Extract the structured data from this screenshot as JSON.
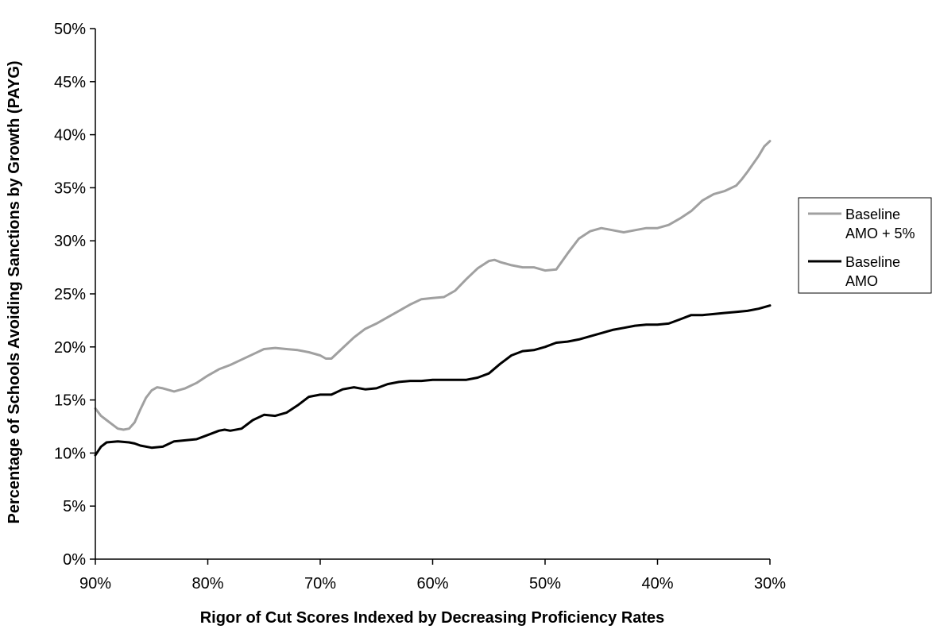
{
  "chart_data": {
    "type": "line",
    "title": "",
    "xlabel": "Rigor of Cut Scores Indexed by Decreasing Proficiency Rates",
    "ylabel": "Percentage of Schools Avoiding Sanctions by Growth (PAYG)",
    "x_reversed": true,
    "xlim": [
      90,
      30
    ],
    "ylim": [
      0,
      50
    ],
    "x_ticks": [
      90,
      80,
      70,
      60,
      50,
      40,
      30
    ],
    "x_tick_labels": [
      "90%",
      "80%",
      "70%",
      "60%",
      "50%",
      "40%",
      "30%"
    ],
    "y_ticks": [
      0,
      5,
      10,
      15,
      20,
      25,
      30,
      35,
      40,
      45,
      50
    ],
    "y_tick_labels": [
      "0%",
      "5%",
      "10%",
      "15%",
      "20%",
      "25%",
      "30%",
      "35%",
      "40%",
      "45%",
      "50%"
    ],
    "grid": false,
    "legend_position": "right",
    "series": [
      {
        "name_lines": [
          "Baseline",
          "AMO + 5%"
        ],
        "color": "#a0a0a0",
        "points": [
          [
            90,
            14.2
          ],
          [
            89.5,
            13.5
          ],
          [
            89,
            13.1
          ],
          [
            88.5,
            12.7
          ],
          [
            88,
            12.3
          ],
          [
            87.5,
            12.2
          ],
          [
            87,
            12.3
          ],
          [
            86.5,
            12.9
          ],
          [
            86,
            14.1
          ],
          [
            85.5,
            15.2
          ],
          [
            85,
            15.9
          ],
          [
            84.5,
            16.2
          ],
          [
            84,
            16.1
          ],
          [
            83,
            15.8
          ],
          [
            82,
            16.1
          ],
          [
            81,
            16.6
          ],
          [
            80,
            17.3
          ],
          [
            79,
            17.9
          ],
          [
            78,
            18.3
          ],
          [
            77,
            18.8
          ],
          [
            76,
            19.3
          ],
          [
            75,
            19.8
          ],
          [
            74,
            19.9
          ],
          [
            73,
            19.8
          ],
          [
            72,
            19.7
          ],
          [
            71,
            19.5
          ],
          [
            70,
            19.2
          ],
          [
            69.5,
            18.9
          ],
          [
            69,
            18.9
          ],
          [
            68,
            19.9
          ],
          [
            67,
            20.9
          ],
          [
            66,
            21.7
          ],
          [
            65,
            22.2
          ],
          [
            64,
            22.8
          ],
          [
            63,
            23.4
          ],
          [
            62,
            24.0
          ],
          [
            61,
            24.5
          ],
          [
            60,
            24.6
          ],
          [
            59,
            24.7
          ],
          [
            58,
            25.3
          ],
          [
            57,
            26.4
          ],
          [
            56,
            27.4
          ],
          [
            55,
            28.1
          ],
          [
            54.5,
            28.2
          ],
          [
            54,
            28.0
          ],
          [
            53,
            27.7
          ],
          [
            52,
            27.5
          ],
          [
            51,
            27.5
          ],
          [
            50,
            27.2
          ],
          [
            49,
            27.3
          ],
          [
            48,
            28.8
          ],
          [
            47,
            30.2
          ],
          [
            46,
            30.9
          ],
          [
            45,
            31.2
          ],
          [
            44,
            31.0
          ],
          [
            43,
            30.8
          ],
          [
            42,
            31.0
          ],
          [
            41,
            31.2
          ],
          [
            40,
            31.2
          ],
          [
            39,
            31.5
          ],
          [
            38,
            32.1
          ],
          [
            37,
            32.8
          ],
          [
            36,
            33.8
          ],
          [
            35,
            34.4
          ],
          [
            34,
            34.7
          ],
          [
            33,
            35.2
          ],
          [
            32.5,
            35.8
          ],
          [
            32,
            36.5
          ],
          [
            31,
            38.0
          ],
          [
            30.5,
            38.9
          ],
          [
            30,
            39.4
          ]
        ]
      },
      {
        "name_lines": [
          "Baseline",
          "AMO"
        ],
        "color": "#000000",
        "points": [
          [
            90,
            9.8
          ],
          [
            89.5,
            10.6
          ],
          [
            89,
            11.0
          ],
          [
            88,
            11.1
          ],
          [
            87,
            11.0
          ],
          [
            86.5,
            10.9
          ],
          [
            86,
            10.7
          ],
          [
            85,
            10.5
          ],
          [
            84,
            10.6
          ],
          [
            83,
            11.1
          ],
          [
            82,
            11.2
          ],
          [
            81,
            11.3
          ],
          [
            80,
            11.7
          ],
          [
            79,
            12.1
          ],
          [
            78.5,
            12.2
          ],
          [
            78,
            12.1
          ],
          [
            77,
            12.3
          ],
          [
            76,
            13.1
          ],
          [
            75,
            13.6
          ],
          [
            74,
            13.5
          ],
          [
            73,
            13.8
          ],
          [
            72,
            14.5
          ],
          [
            71,
            15.3
          ],
          [
            70,
            15.5
          ],
          [
            69,
            15.5
          ],
          [
            68,
            16.0
          ],
          [
            67,
            16.2
          ],
          [
            66,
            16.0
          ],
          [
            65,
            16.1
          ],
          [
            64,
            16.5
          ],
          [
            63,
            16.7
          ],
          [
            62,
            16.8
          ],
          [
            61,
            16.8
          ],
          [
            60,
            16.9
          ],
          [
            59,
            16.9
          ],
          [
            58,
            16.9
          ],
          [
            57,
            16.9
          ],
          [
            56,
            17.1
          ],
          [
            55,
            17.5
          ],
          [
            54,
            18.4
          ],
          [
            53,
            19.2
          ],
          [
            52,
            19.6
          ],
          [
            51,
            19.7
          ],
          [
            50,
            20.0
          ],
          [
            49,
            20.4
          ],
          [
            48,
            20.5
          ],
          [
            47,
            20.7
          ],
          [
            46,
            21.0
          ],
          [
            45,
            21.3
          ],
          [
            44,
            21.6
          ],
          [
            43,
            21.8
          ],
          [
            42,
            22.0
          ],
          [
            41,
            22.1
          ],
          [
            40,
            22.1
          ],
          [
            39,
            22.2
          ],
          [
            38,
            22.6
          ],
          [
            37,
            23.0
          ],
          [
            36,
            23.0
          ],
          [
            35,
            23.1
          ],
          [
            34,
            23.2
          ],
          [
            33,
            23.3
          ],
          [
            32,
            23.4
          ],
          [
            31,
            23.6
          ],
          [
            30,
            23.9
          ]
        ]
      }
    ]
  }
}
